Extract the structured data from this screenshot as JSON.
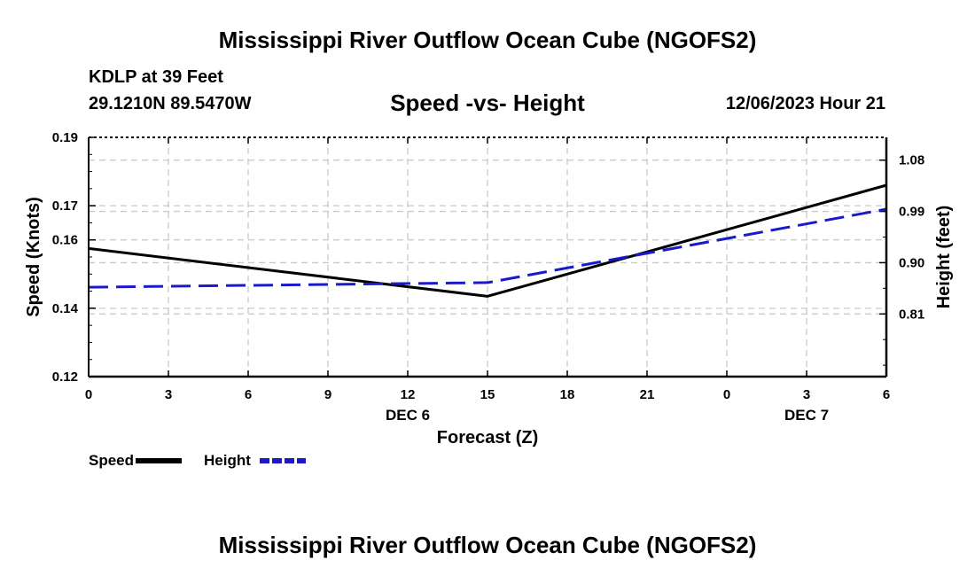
{
  "page": {
    "title": "Mississippi River Outflow Ocean Cube (NGOFS2)",
    "title_bottom": "Mississippi River Outflow Ocean Cube (NGOFS2)",
    "station": "KDLP at 39 Feet",
    "coords": "29.1210N  89.5470W",
    "timestamp": "12/06/2023 Hour 21"
  },
  "chart_data": {
    "type": "line",
    "title": "Speed -vs- Height",
    "xlabel": "Forecast (Z)",
    "ylabel": "Speed (Knots)",
    "y2label": "Height (feet)",
    "x": [
      0,
      3,
      6,
      9,
      12,
      15,
      18,
      21,
      24,
      27,
      30
    ],
    "xticklabels": [
      "0",
      "3",
      "6",
      "9",
      "12",
      "15",
      "18",
      "21",
      "0",
      "3",
      "6"
    ],
    "date_labels": [
      {
        "label": "DEC 6",
        "x": 12
      },
      {
        "label": "DEC 7",
        "x": 27
      }
    ],
    "xlim": [
      0,
      30
    ],
    "ylim": [
      0.12,
      0.19
    ],
    "yticks": [
      0.12,
      0.14,
      0.16,
      0.17,
      0.19
    ],
    "yticklabels": [
      "0.12",
      "0.14",
      "0.16",
      "0.17",
      "0.19"
    ],
    "y2lim": [
      0.7,
      1.12
    ],
    "y2ticks": [
      0.81,
      0.9,
      0.99,
      1.08
    ],
    "y2ticklabels": [
      "0.81",
      "0.90",
      "0.99",
      "1.08"
    ],
    "series": [
      {
        "name": "Speed",
        "axis": "left",
        "color": "#000000",
        "dash": "solid",
        "x": [
          0,
          15,
          30
        ],
        "values": [
          0.1575,
          0.1435,
          0.176
        ]
      },
      {
        "name": "Height",
        "axis": "right",
        "color": "#1a1acd",
        "dash": "dashed",
        "x": [
          0,
          15,
          30
        ],
        "values": [
          0.857,
          0.865,
          0.994
        ]
      }
    ],
    "legend": [
      {
        "label": "Speed",
        "color": "#000000",
        "dash": "solid"
      },
      {
        "label": "Height",
        "color": "#1a1acd",
        "dash": "dashed"
      }
    ],
    "grid": true
  }
}
